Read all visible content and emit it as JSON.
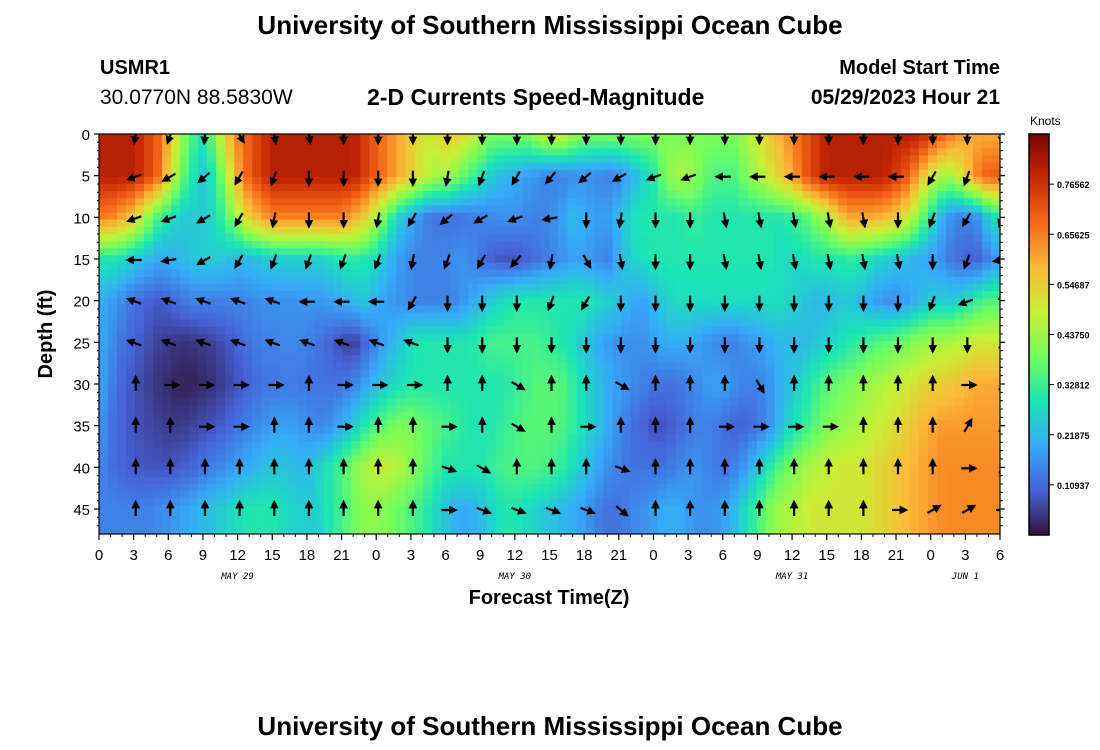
{
  "header": {
    "title": "University of Southern Mississippi Ocean Cube",
    "station_id": "USMR1",
    "station_coords": "30.0770N  88.5830W",
    "plot_title": "2-D Currents Speed-Magnitude",
    "model_start_label": "Model Start Time",
    "model_start_value": "05/29/2023 Hour 21"
  },
  "footer": {
    "title_repeat": "University of Southern Mississippi Ocean Cube"
  },
  "chart_data": {
    "type": "heatmap",
    "title": "2-D Currents Speed-Magnitude",
    "xlabel": "Forecast Time(Z)",
    "ylabel": "Depth (ft)",
    "x_tick_labels": [
      "0",
      "3",
      "6",
      "9",
      "12",
      "15",
      "18",
      "21",
      "0",
      "3",
      "6",
      "9",
      "12",
      "15",
      "18",
      "21",
      "0",
      "3",
      "6",
      "9",
      "12",
      "15",
      "18",
      "21",
      "0",
      "3",
      "6"
    ],
    "date_labels": [
      {
        "label": "MAY 29",
        "at_tick": 4
      },
      {
        "label": "MAY 30",
        "at_tick": 12
      },
      {
        "label": "MAY 31",
        "at_tick": 20
      },
      {
        "label": "JUN 1",
        "at_tick": 25
      }
    ],
    "y_ticks": [
      0,
      5,
      10,
      15,
      20,
      25,
      30,
      35,
      40,
      45
    ],
    "ylim": [
      0,
      48
    ],
    "y_inverted": true,
    "colorbar": {
      "title": "Knots",
      "tick_labels": [
        "0.10937",
        "0.21875",
        "0.32812",
        "0.43750",
        "0.54687",
        "0.65625",
        "0.76562"
      ],
      "range": [
        0,
        0.875
      ],
      "colormap": [
        "#30123b",
        "#4662d7",
        "#36aaf9",
        "#1ae4b6",
        "#72fe5e",
        "#c7ef34",
        "#fbb938",
        "#f56918",
        "#c92903",
        "#7a0403"
      ]
    },
    "depths_ft": [
      0,
      5,
      10,
      15,
      20,
      25,
      30,
      35,
      40,
      45
    ],
    "time_index": [
      0,
      1,
      2,
      3,
      4,
      5,
      6,
      7,
      8,
      9,
      10,
      11,
      12,
      13,
      14,
      15,
      16,
      17,
      18,
      19,
      20,
      21,
      22,
      23,
      24,
      25,
      26,
      27,
      28,
      29,
      30,
      31,
      32,
      33,
      34,
      35,
      36,
      37,
      38,
      39,
      40,
      41,
      42,
      43,
      44,
      45,
      46,
      47,
      48,
      49,
      50,
      51,
      52,
      53,
      54,
      55,
      56,
      57,
      58,
      59,
      60,
      61,
      62,
      63,
      64,
      65,
      66,
      67,
      68,
      69,
      70,
      71,
      72,
      73,
      74,
      75,
      76,
      77,
      78
    ],
    "speed_knots": [
      [
        0.8,
        0.8,
        0.8,
        0.8,
        0.75,
        0.7,
        0.6,
        0.45,
        0.35,
        0.3,
        0.4,
        0.55,
        0.65,
        0.7,
        0.75,
        0.8,
        0.8,
        0.8,
        0.8,
        0.8,
        0.8,
        0.8,
        0.8,
        0.75,
        0.7,
        0.65,
        0.6,
        0.55,
        0.5,
        0.5,
        0.55,
        0.55,
        0.5,
        0.45,
        0.4,
        0.4,
        0.4,
        0.4,
        0.45,
        0.5,
        0.5,
        0.45,
        0.4,
        0.4,
        0.4,
        0.4,
        0.4,
        0.4,
        0.4,
        0.4,
        0.4,
        0.4,
        0.4,
        0.4,
        0.4,
        0.4,
        0.45,
        0.5,
        0.55,
        0.6,
        0.65,
        0.7,
        0.75,
        0.8,
        0.8,
        0.8,
        0.8,
        0.8,
        0.8,
        0.8,
        0.8,
        0.8,
        0.75,
        0.7,
        0.65,
        0.6,
        0.6,
        0.6,
        0.6
      ],
      [
        0.8,
        0.8,
        0.8,
        0.8,
        0.75,
        0.7,
        0.55,
        0.4,
        0.3,
        0.25,
        0.3,
        0.45,
        0.6,
        0.7,
        0.75,
        0.8,
        0.8,
        0.8,
        0.8,
        0.8,
        0.8,
        0.8,
        0.8,
        0.75,
        0.7,
        0.65,
        0.6,
        0.55,
        0.5,
        0.45,
        0.45,
        0.4,
        0.35,
        0.3,
        0.25,
        0.22,
        0.2,
        0.18,
        0.16,
        0.14,
        0.14,
        0.15,
        0.16,
        0.15,
        0.14,
        0.15,
        0.2,
        0.25,
        0.3,
        0.4,
        0.45,
        0.45,
        0.4,
        0.35,
        0.35,
        0.35,
        0.4,
        0.45,
        0.5,
        0.55,
        0.6,
        0.7,
        0.75,
        0.8,
        0.8,
        0.8,
        0.8,
        0.8,
        0.8,
        0.75,
        0.7,
        0.6,
        0.5,
        0.45,
        0.45,
        0.55,
        0.65,
        0.7,
        0.7
      ],
      [
        0.65,
        0.65,
        0.6,
        0.55,
        0.45,
        0.35,
        0.3,
        0.25,
        0.25,
        0.25,
        0.28,
        0.35,
        0.45,
        0.55,
        0.6,
        0.65,
        0.65,
        0.65,
        0.65,
        0.65,
        0.65,
        0.65,
        0.6,
        0.55,
        0.45,
        0.35,
        0.25,
        0.2,
        0.15,
        0.12,
        0.12,
        0.12,
        0.13,
        0.14,
        0.15,
        0.16,
        0.16,
        0.15,
        0.14,
        0.15,
        0.18,
        0.22,
        0.2,
        0.18,
        0.18,
        0.22,
        0.28,
        0.3,
        0.3,
        0.3,
        0.3,
        0.32,
        0.32,
        0.3,
        0.3,
        0.3,
        0.3,
        0.3,
        0.3,
        0.3,
        0.32,
        0.35,
        0.4,
        0.45,
        0.55,
        0.6,
        0.6,
        0.6,
        0.58,
        0.55,
        0.5,
        0.4,
        0.3,
        0.2,
        0.15,
        0.14,
        0.16,
        0.25,
        0.3
      ],
      [
        0.3,
        0.3,
        0.28,
        0.25,
        0.22,
        0.2,
        0.2,
        0.22,
        0.24,
        0.25,
        0.25,
        0.24,
        0.22,
        0.22,
        0.24,
        0.25,
        0.26,
        0.26,
        0.26,
        0.26,
        0.28,
        0.3,
        0.32,
        0.3,
        0.28,
        0.22,
        0.18,
        0.15,
        0.14,
        0.14,
        0.15,
        0.16,
        0.16,
        0.12,
        0.1,
        0.08,
        0.08,
        0.1,
        0.12,
        0.14,
        0.16,
        0.18,
        0.18,
        0.16,
        0.14,
        0.2,
        0.26,
        0.28,
        0.3,
        0.3,
        0.3,
        0.3,
        0.3,
        0.3,
        0.3,
        0.3,
        0.3,
        0.3,
        0.3,
        0.28,
        0.28,
        0.28,
        0.3,
        0.3,
        0.3,
        0.32,
        0.3,
        0.28,
        0.26,
        0.24,
        0.22,
        0.2,
        0.18,
        0.16,
        0.12,
        0.1,
        0.1,
        0.14,
        0.18
      ],
      [
        0.2,
        0.18,
        0.15,
        0.12,
        0.1,
        0.09,
        0.1,
        0.12,
        0.14,
        0.14,
        0.14,
        0.14,
        0.14,
        0.15,
        0.16,
        0.16,
        0.16,
        0.16,
        0.17,
        0.17,
        0.18,
        0.2,
        0.22,
        0.24,
        0.2,
        0.18,
        0.16,
        0.15,
        0.14,
        0.14,
        0.14,
        0.15,
        0.18,
        0.22,
        0.25,
        0.28,
        0.3,
        0.3,
        0.3,
        0.3,
        0.3,
        0.3,
        0.3,
        0.28,
        0.26,
        0.24,
        0.2,
        0.18,
        0.22,
        0.26,
        0.28,
        0.28,
        0.28,
        0.28,
        0.28,
        0.28,
        0.28,
        0.28,
        0.28,
        0.28,
        0.26,
        0.24,
        0.22,
        0.22,
        0.24,
        0.24,
        0.22,
        0.18,
        0.16,
        0.16,
        0.18,
        0.22,
        0.25,
        0.25,
        0.25,
        0.28,
        0.32,
        0.35,
        0.35
      ],
      [
        0.2,
        0.16,
        0.12,
        0.1,
        0.08,
        0.06,
        0.05,
        0.04,
        0.04,
        0.05,
        0.06,
        0.08,
        0.1,
        0.12,
        0.14,
        0.14,
        0.15,
        0.15,
        0.14,
        0.12,
        0.1,
        0.07,
        0.05,
        0.1,
        0.15,
        0.2,
        0.24,
        0.28,
        0.3,
        0.3,
        0.3,
        0.3,
        0.3,
        0.32,
        0.34,
        0.34,
        0.34,
        0.34,
        0.34,
        0.32,
        0.3,
        0.28,
        0.24,
        0.2,
        0.18,
        0.16,
        0.16,
        0.16,
        0.18,
        0.2,
        0.2,
        0.2,
        0.18,
        0.16,
        0.14,
        0.14,
        0.16,
        0.18,
        0.2,
        0.22,
        0.22,
        0.22,
        0.24,
        0.26,
        0.28,
        0.3,
        0.32,
        0.35,
        0.36,
        0.38,
        0.4,
        0.42,
        0.44,
        0.45,
        0.46,
        0.48,
        0.5,
        0.5,
        0.5
      ],
      [
        0.2,
        0.14,
        0.1,
        0.08,
        0.06,
        0.04,
        0.03,
        0.02,
        0.02,
        0.03,
        0.04,
        0.06,
        0.08,
        0.1,
        0.12,
        0.12,
        0.13,
        0.13,
        0.12,
        0.12,
        0.12,
        0.12,
        0.14,
        0.18,
        0.22,
        0.26,
        0.28,
        0.3,
        0.3,
        0.3,
        0.3,
        0.3,
        0.3,
        0.3,
        0.3,
        0.3,
        0.32,
        0.34,
        0.36,
        0.36,
        0.36,
        0.32,
        0.28,
        0.24,
        0.2,
        0.18,
        0.16,
        0.14,
        0.12,
        0.12,
        0.12,
        0.14,
        0.16,
        0.18,
        0.18,
        0.16,
        0.14,
        0.14,
        0.16,
        0.2,
        0.24,
        0.28,
        0.32,
        0.36,
        0.38,
        0.4,
        0.42,
        0.44,
        0.46,
        0.48,
        0.5,
        0.52,
        0.54,
        0.55,
        0.56,
        0.58,
        0.6,
        0.6,
        0.6
      ],
      [
        0.18,
        0.12,
        0.1,
        0.08,
        0.07,
        0.06,
        0.05,
        0.05,
        0.06,
        0.07,
        0.08,
        0.1,
        0.12,
        0.14,
        0.16,
        0.18,
        0.18,
        0.18,
        0.16,
        0.15,
        0.16,
        0.2,
        0.25,
        0.3,
        0.35,
        0.38,
        0.4,
        0.4,
        0.38,
        0.36,
        0.34,
        0.32,
        0.3,
        0.3,
        0.3,
        0.32,
        0.34,
        0.36,
        0.36,
        0.36,
        0.35,
        0.32,
        0.28,
        0.24,
        0.2,
        0.16,
        0.12,
        0.1,
        0.08,
        0.08,
        0.1,
        0.12,
        0.14,
        0.14,
        0.12,
        0.1,
        0.1,
        0.12,
        0.16,
        0.22,
        0.28,
        0.32,
        0.36,
        0.4,
        0.42,
        0.44,
        0.46,
        0.48,
        0.5,
        0.52,
        0.55,
        0.58,
        0.6,
        0.62,
        0.62,
        0.62,
        0.62,
        0.62,
        0.62
      ],
      [
        0.15,
        0.12,
        0.1,
        0.09,
        0.08,
        0.08,
        0.08,
        0.09,
        0.1,
        0.12,
        0.14,
        0.16,
        0.18,
        0.2,
        0.22,
        0.24,
        0.24,
        0.22,
        0.22,
        0.26,
        0.3,
        0.35,
        0.4,
        0.45,
        0.48,
        0.48,
        0.46,
        0.42,
        0.38,
        0.34,
        0.3,
        0.3,
        0.3,
        0.3,
        0.32,
        0.34,
        0.35,
        0.35,
        0.35,
        0.34,
        0.32,
        0.28,
        0.24,
        0.2,
        0.16,
        0.14,
        0.12,
        0.12,
        0.12,
        0.12,
        0.14,
        0.16,
        0.16,
        0.14,
        0.12,
        0.14,
        0.18,
        0.24,
        0.3,
        0.36,
        0.4,
        0.44,
        0.46,
        0.48,
        0.5,
        0.5,
        0.5,
        0.52,
        0.54,
        0.56,
        0.58,
        0.6,
        0.62,
        0.64,
        0.64,
        0.64,
        0.64,
        0.64,
        0.64
      ],
      [
        0.14,
        0.14,
        0.14,
        0.14,
        0.14,
        0.15,
        0.16,
        0.18,
        0.2,
        0.22,
        0.24,
        0.26,
        0.28,
        0.3,
        0.3,
        0.3,
        0.28,
        0.26,
        0.25,
        0.26,
        0.3,
        0.34,
        0.38,
        0.42,
        0.42,
        0.4,
        0.38,
        0.35,
        0.32,
        0.28,
        0.24,
        0.2,
        0.2,
        0.22,
        0.26,
        0.3,
        0.3,
        0.28,
        0.26,
        0.24,
        0.22,
        0.2,
        0.18,
        0.14,
        0.12,
        0.12,
        0.14,
        0.16,
        0.18,
        0.2,
        0.2,
        0.18,
        0.16,
        0.16,
        0.18,
        0.22,
        0.28,
        0.34,
        0.4,
        0.44,
        0.46,
        0.48,
        0.5,
        0.5,
        0.5,
        0.5,
        0.5,
        0.52,
        0.54,
        0.56,
        0.58,
        0.6,
        0.62,
        0.64,
        0.64,
        0.64,
        0.64,
        0.64,
        0.64
      ]
    ],
    "vectors": {
      "columns_hour": [
        3,
        6,
        9,
        12,
        15,
        18,
        21,
        24,
        27,
        30,
        33,
        36,
        39,
        42,
        45,
        48,
        51,
        54,
        57,
        60,
        63,
        66,
        69,
        72,
        75,
        78
      ],
      "rows_depth": [
        0,
        5,
        10,
        15,
        20,
        25,
        30,
        35,
        40,
        45
      ],
      "direction_deg_screen": [
        [
          100,
          110,
          95,
          60,
          80,
          80,
          90,
          90,
          90,
          90,
          90,
          90,
          90,
          90,
          90,
          90,
          90,
          90,
          90,
          90,
          90,
          90,
          90,
          90,
          90,
          90
        ],
        [
          160,
          150,
          140,
          120,
          110,
          90,
          90,
          90,
          90,
          100,
          110,
          120,
          130,
          140,
          150,
          160,
          160,
          180,
          180,
          180,
          180,
          180,
          180,
          120,
          110,
          90
        ],
        [
          160,
          160,
          150,
          120,
          100,
          90,
          90,
          100,
          120,
          140,
          150,
          160,
          170,
          90,
          100,
          90,
          90,
          80,
          80,
          80,
          80,
          80,
          90,
          110,
          120,
          110
        ],
        [
          180,
          170,
          150,
          120,
          110,
          110,
          110,
          110,
          100,
          110,
          120,
          130,
          100,
          60,
          80,
          90,
          90,
          80,
          80,
          80,
          80,
          80,
          80,
          90,
          110,
          170
        ],
        [
          200,
          200,
          200,
          200,
          200,
          180,
          180,
          180,
          120,
          90,
          90,
          90,
          110,
          120,
          90,
          90,
          90,
          90,
          90,
          90,
          90,
          90,
          90,
          110,
          160,
          -90
        ],
        [
          200,
          200,
          200,
          200,
          200,
          200,
          200,
          200,
          200,
          90,
          90,
          90,
          90,
          90,
          90,
          90,
          90,
          90,
          90,
          90,
          90,
          90,
          90,
          90,
          90,
          -60
        ],
        [
          -90,
          0,
          0,
          0,
          0,
          -90,
          0,
          0,
          0,
          -90,
          -90,
          30,
          -90,
          -90,
          30,
          -90,
          -90,
          -90,
          60,
          -90,
          -90,
          -90,
          -90,
          -90,
          0,
          -60
        ],
        [
          -90,
          -90,
          0,
          0,
          -90,
          -90,
          0,
          -90,
          -90,
          0,
          -90,
          30,
          -90,
          0,
          -90,
          -90,
          -90,
          0,
          0,
          0,
          0,
          -90,
          -90,
          -90,
          -60,
          -60
        ],
        [
          -90,
          -90,
          -90,
          -90,
          -90,
          -90,
          -90,
          -90,
          -90,
          20,
          30,
          -90,
          -90,
          -90,
          20,
          -90,
          -90,
          -90,
          -90,
          -90,
          -90,
          -90,
          -90,
          -90,
          0,
          -60
        ],
        [
          -90,
          -90,
          -90,
          -90,
          -90,
          -90,
          -90,
          -90,
          -90,
          0,
          20,
          20,
          20,
          20,
          40,
          -90,
          -90,
          -90,
          -90,
          -90,
          -90,
          -90,
          0,
          -30,
          -30,
          0
        ]
      ]
    }
  }
}
